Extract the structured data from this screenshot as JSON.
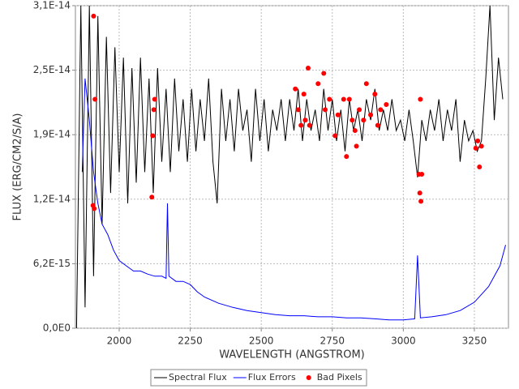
{
  "chart_data": {
    "type": "line",
    "x_label": "WAVELENGTH (ANGSTROM)",
    "y_label": "FLUX (ERG/CM2/S/A)",
    "xlim": [
      1846,
      3370
    ],
    "ylim": [
      0,
      3.1e-14
    ],
    "xticks": [
      2000,
      2250,
      2500,
      2750,
      3000,
      3250
    ],
    "yticks": [
      {
        "value": 0,
        "label": "0,0E0"
      },
      {
        "value": 6.2e-15,
        "label": "6,2E-15"
      },
      {
        "value": 1.24e-14,
        "label": "1,2E-14"
      },
      {
        "value": 1.86e-14,
        "label": "1,9E-14"
      },
      {
        "value": 2.48e-14,
        "label": "2,5E-14"
      },
      {
        "value": 3.1e-14,
        "label": "3,1E-14"
      }
    ],
    "grid": true,
    "legend": "bottom",
    "series": [
      {
        "name": "Spectral Flux",
        "color": "#000000",
        "x": [
          1850,
          1865,
          1880,
          1895,
          1910,
          1925,
          1940,
          1955,
          1970,
          1985,
          2000,
          2015,
          2030,
          2045,
          2060,
          2075,
          2090,
          2105,
          2120,
          2135,
          2150,
          2165,
          2180,
          2195,
          2210,
          2225,
          2240,
          2255,
          2270,
          2285,
          2300,
          2315,
          2330,
          2345,
          2360,
          2375,
          2390,
          2405,
          2420,
          2435,
          2450,
          2465,
          2480,
          2495,
          2510,
          2525,
          2540,
          2555,
          2570,
          2585,
          2600,
          2615,
          2630,
          2645,
          2660,
          2675,
          2690,
          2705,
          2720,
          2735,
          2750,
          2765,
          2780,
          2795,
          2810,
          2825,
          2840,
          2855,
          2870,
          2885,
          2900,
          2915,
          2930,
          2945,
          2960,
          2975,
          2990,
          3005,
          3020,
          3035,
          3050,
          3065,
          3080,
          3095,
          3110,
          3125,
          3140,
          3155,
          3170,
          3185,
          3200,
          3215,
          3230,
          3245,
          3260,
          3275,
          3290,
          3305,
          3320,
          3335,
          3350
        ],
        "values": [
          0,
          3.1e-14,
          2e-15,
          3.1e-14,
          5e-15,
          3e-14,
          1e-14,
          2.8e-14,
          1.3e-14,
          2.7e-14,
          1.5e-14,
          2.6e-14,
          1.2e-14,
          2.5e-14,
          1.4e-14,
          2.6e-14,
          1.5e-14,
          2.4e-14,
          1.3e-14,
          2.5e-14,
          1.6e-14,
          2.3e-14,
          1.5e-14,
          2.4e-14,
          1.7e-14,
          2.2e-14,
          1.6e-14,
          2.3e-14,
          1.7e-14,
          2.2e-14,
          1.8e-14,
          2.4e-14,
          1.6e-14,
          1.2e-14,
          2.3e-14,
          1.8e-14,
          2.2e-14,
          1.7e-14,
          2.3e-14,
          1.9e-14,
          2.1e-14,
          1.6e-14,
          2.3e-14,
          1.8e-14,
          2.2e-14,
          1.7e-14,
          2.1e-14,
          1.9e-14,
          2.2e-14,
          1.8e-14,
          2.2e-14,
          1.9e-14,
          2.3e-14,
          1.8e-14,
          2.2e-14,
          1.9e-14,
          2.1e-14,
          1.8e-14,
          2.3e-14,
          1.9e-14,
          2.2e-14,
          1.8e-14,
          2.1e-14,
          1.7e-14,
          2.2e-14,
          1.9e-14,
          2.1e-14,
          1.8e-14,
          2.2e-14,
          2e-14,
          2.3e-14,
          1.9e-14,
          2.1e-14,
          1.9e-14,
          2.2e-14,
          1.9e-14,
          2e-14,
          1.8e-14,
          2.1e-14,
          1.8e-14,
          1.45e-14,
          2e-14,
          1.8e-14,
          2.1e-14,
          1.9e-14,
          2.2e-14,
          1.8e-14,
          2.1e-14,
          1.9e-14,
          2.2e-14,
          1.6e-14,
          2e-14,
          1.8e-14,
          1.9e-14,
          1.7e-14,
          1.8e-14,
          2.4e-14,
          3.1e-14,
          2e-14,
          2.6e-14,
          2.2e-14
        ]
      },
      {
        "name": "Flux Errors",
        "color": "#0000ff",
        "x": [
          1870,
          1880,
          1895,
          1910,
          1925,
          1940,
          1960,
          1980,
          2000,
          2025,
          2050,
          2075,
          2100,
          2125,
          2150,
          2165,
          2170,
          2175,
          2200,
          2225,
          2250,
          2275,
          2300,
          2325,
          2350,
          2400,
          2450,
          2500,
          2550,
          2600,
          2650,
          2700,
          2750,
          2800,
          2850,
          2900,
          2950,
          3000,
          3040,
          3050,
          3060,
          3100,
          3150,
          3200,
          3250,
          3300,
          3340,
          3360
        ],
        "values": [
          1.5e-14,
          2.4e-14,
          2e-14,
          1.5e-14,
          1.2e-14,
          1e-14,
          9e-15,
          7.5e-15,
          6.5e-15,
          6e-15,
          5.5e-15,
          5.5e-15,
          5.2e-15,
          5e-15,
          5e-15,
          4.8e-15,
          1.2e-14,
          5e-15,
          4.5e-15,
          4.5e-15,
          4.2e-15,
          3.5e-15,
          3e-15,
          2.7e-15,
          2.4e-15,
          2e-15,
          1.7e-15,
          1.5e-15,
          1.3e-15,
          1.2e-15,
          1.2e-15,
          1.1e-15,
          1.1e-15,
          1e-15,
          1e-15,
          9e-16,
          8e-16,
          8e-16,
          9e-16,
          7e-15,
          1e-15,
          1.1e-15,
          1.3e-15,
          1.7e-15,
          2.5e-15,
          4e-15,
          6e-15,
          8e-15
        ]
      },
      {
        "name": "Bad Pixels",
        "color": "#ff0000",
        "type": "scatter",
        "x": [
          1910,
          1908,
          1912,
          1915,
          2115,
          2118,
          2122,
          2125,
          2620,
          2630,
          2640,
          2650,
          2655,
          2665,
          2670,
          2700,
          2720,
          2725,
          2740,
          2760,
          2770,
          2790,
          2800,
          2810,
          2820,
          2830,
          2835,
          2845,
          2860,
          2870,
          2885,
          2900,
          2910,
          2920,
          2940,
          3055,
          3058,
          3062,
          3060,
          3065,
          3255,
          3262,
          3268,
          3275
        ],
        "values": [
          3e-14,
          1.18e-14,
          1.15e-14,
          2.2e-14,
          1.26e-14,
          1.85e-14,
          2.1e-14,
          2.2e-14,
          2.3e-14,
          2.1e-14,
          1.95e-14,
          2.25e-14,
          2e-14,
          2.5e-14,
          1.95e-14,
          2.35e-14,
          2.45e-14,
          2.1e-14,
          2.2e-14,
          1.85e-14,
          2.05e-14,
          2.2e-14,
          1.65e-14,
          2.2e-14,
          2e-14,
          1.9e-14,
          1.75e-14,
          2.1e-14,
          2e-14,
          2.35e-14,
          2.05e-14,
          2.25e-14,
          1.95e-14,
          2.1e-14,
          2.15e-14,
          1.48e-14,
          1.3e-14,
          1.22e-14,
          2.2e-14,
          1.48e-14,
          1.73e-14,
          1.8e-14,
          1.55e-14,
          1.75e-14
        ]
      }
    ]
  }
}
